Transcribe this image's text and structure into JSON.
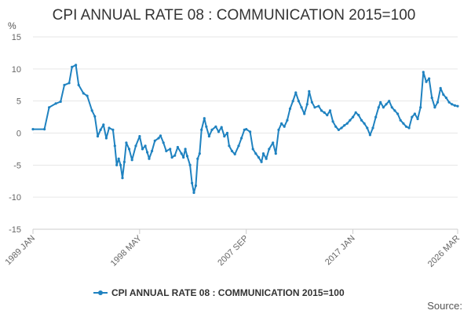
{
  "chart_data": {
    "type": "line",
    "title": "CPI ANNUAL RATE 08 : COMMUNICATION 2015=100",
    "unit": "%",
    "source_label": "Source:",
    "ylim": [
      -15,
      15
    ],
    "yticks": [
      15,
      10,
      5,
      0,
      -5,
      -10,
      -15
    ],
    "xlim": [
      "1989-01",
      "2026-03"
    ],
    "xticks": [
      {
        "label": "1989 JAN",
        "date": "1989-01"
      },
      {
        "label": "1998 MAY",
        "date": "1998-05"
      },
      {
        "label": "2007 SEP",
        "date": "2007-09"
      },
      {
        "label": "2017 JAN",
        "date": "2017-01"
      },
      {
        "label": "2026 MAR",
        "date": "2026-03"
      }
    ],
    "grid": true,
    "legend_position": "bottom",
    "colors": {
      "series": "#1f82c0",
      "grid": "#e6e6e6",
      "axis": "#cccccc"
    },
    "series": [
      {
        "name": "CPI ANNUAL RATE 08 : COMMUNICATION 2015=100",
        "points": [
          [
            "1989-01",
            0.6
          ],
          [
            "1990-01",
            0.6
          ],
          [
            "1990-06",
            4.0
          ],
          [
            "1991-01",
            4.6
          ],
          [
            "1991-06",
            4.9
          ],
          [
            "1991-10",
            7.5
          ],
          [
            "1992-03",
            7.8
          ],
          [
            "1992-06",
            10.3
          ],
          [
            "1992-10",
            10.6
          ],
          [
            "1993-01",
            7.5
          ],
          [
            "1993-06",
            6.2
          ],
          [
            "1993-10",
            5.8
          ],
          [
            "1994-03",
            3.5
          ],
          [
            "1994-06",
            2.6
          ],
          [
            "1994-09",
            -0.5
          ],
          [
            "1994-12",
            0.5
          ],
          [
            "1995-03",
            1.3
          ],
          [
            "1995-06",
            -0.8
          ],
          [
            "1995-09",
            0.8
          ],
          [
            "1996-01",
            0.5
          ],
          [
            "1996-03",
            -2.0
          ],
          [
            "1996-05",
            -5.0
          ],
          [
            "1996-07",
            -4.0
          ],
          [
            "1996-09",
            -5.0
          ],
          [
            "1996-11",
            -7.0
          ],
          [
            "1997-01",
            -4.5
          ],
          [
            "1997-03",
            -1.5
          ],
          [
            "1997-06",
            -2.5
          ],
          [
            "1997-09",
            -4.2
          ],
          [
            "1998-01",
            -2.0
          ],
          [
            "1998-05",
            -0.5
          ],
          [
            "1998-08",
            -2.5
          ],
          [
            "1998-11",
            -2.0
          ],
          [
            "1999-01",
            -3.0
          ],
          [
            "1999-03",
            -4.0
          ],
          [
            "1999-06",
            -2.8
          ],
          [
            "1999-09",
            -1.2
          ],
          [
            "2000-01",
            -0.8
          ],
          [
            "2000-03",
            -0.4
          ],
          [
            "2000-06",
            -1.5
          ],
          [
            "2000-09",
            -2.8
          ],
          [
            "2001-01",
            -2.5
          ],
          [
            "2001-03",
            -3.8
          ],
          [
            "2001-06",
            -3.5
          ],
          [
            "2001-09",
            -2.2
          ],
          [
            "2002-01",
            -3.2
          ],
          [
            "2002-03",
            -3.8
          ],
          [
            "2002-05",
            -2.5
          ],
          [
            "2002-07",
            -3.6
          ],
          [
            "2002-10",
            -5.0
          ],
          [
            "2002-12",
            -7.8
          ],
          [
            "2003-02",
            -9.3
          ],
          [
            "2003-04",
            -8.2
          ],
          [
            "2003-06",
            -4.0
          ],
          [
            "2003-08",
            -3.2
          ],
          [
            "2003-10",
            0.5
          ],
          [
            "2004-01",
            2.3
          ],
          [
            "2004-03",
            1.0
          ],
          [
            "2004-06",
            -0.5
          ],
          [
            "2004-09",
            0.5
          ],
          [
            "2005-01",
            1.0
          ],
          [
            "2005-04",
            0.2
          ],
          [
            "2005-07",
            0.9
          ],
          [
            "2005-10",
            -0.5
          ],
          [
            "2006-01",
            0.0
          ],
          [
            "2006-03",
            -2.0
          ],
          [
            "2006-06",
            -2.8
          ],
          [
            "2006-09",
            -3.3
          ],
          [
            "2007-01",
            -2.0
          ],
          [
            "2007-04",
            -0.8
          ],
          [
            "2007-07",
            0.5
          ],
          [
            "2007-09",
            0.6
          ],
          [
            "2008-01",
            0.2
          ],
          [
            "2008-04",
            -2.5
          ],
          [
            "2008-07",
            -3.2
          ],
          [
            "2008-10",
            -3.8
          ],
          [
            "2009-01",
            -4.5
          ],
          [
            "2009-03",
            -3.2
          ],
          [
            "2009-06",
            -4.0
          ],
          [
            "2009-09",
            -2.5
          ],
          [
            "2010-01",
            -1.5
          ],
          [
            "2010-04",
            -3.2
          ],
          [
            "2010-07",
            0.5
          ],
          [
            "2010-10",
            1.5
          ],
          [
            "2011-01",
            1.0
          ],
          [
            "2011-04",
            2.0
          ],
          [
            "2011-07",
            3.8
          ],
          [
            "2011-10",
            5.0
          ],
          [
            "2012-01",
            6.3
          ],
          [
            "2012-04",
            5.0
          ],
          [
            "2012-07",
            4.0
          ],
          [
            "2012-10",
            3.0
          ],
          [
            "2013-01",
            4.5
          ],
          [
            "2013-03",
            6.5
          ],
          [
            "2013-06",
            4.8
          ],
          [
            "2013-09",
            4.0
          ],
          [
            "2014-01",
            4.2
          ],
          [
            "2014-04",
            3.5
          ],
          [
            "2014-07",
            3.2
          ],
          [
            "2014-10",
            2.8
          ],
          [
            "2015-01",
            3.5
          ],
          [
            "2015-04",
            1.8
          ],
          [
            "2015-07",
            1.0
          ],
          [
            "2015-10",
            0.5
          ],
          [
            "2016-01",
            0.8
          ],
          [
            "2016-04",
            1.2
          ],
          [
            "2016-07",
            1.5
          ],
          [
            "2016-10",
            2.0
          ],
          [
            "2017-01",
            2.5
          ],
          [
            "2017-04",
            3.2
          ],
          [
            "2017-07",
            2.8
          ],
          [
            "2017-10",
            2.0
          ],
          [
            "2018-01",
            1.5
          ],
          [
            "2018-04",
            0.8
          ],
          [
            "2018-07",
            -0.3
          ],
          [
            "2018-10",
            0.8
          ],
          [
            "2019-01",
            2.5
          ],
          [
            "2019-04",
            4.0
          ],
          [
            "2019-06",
            4.8
          ],
          [
            "2019-09",
            4.0
          ],
          [
            "2019-12",
            4.5
          ],
          [
            "2020-03",
            5.0
          ],
          [
            "2020-06",
            4.0
          ],
          [
            "2020-09",
            3.5
          ],
          [
            "2020-12",
            3.0
          ],
          [
            "2021-03",
            2.0
          ],
          [
            "2021-06",
            1.5
          ],
          [
            "2021-09",
            1.0
          ],
          [
            "2021-12",
            0.8
          ],
          [
            "2022-03",
            2.5
          ],
          [
            "2022-06",
            3.0
          ],
          [
            "2022-09",
            2.2
          ],
          [
            "2022-12",
            4.0
          ],
          [
            "2023-03",
            9.5
          ],
          [
            "2023-06",
            8.0
          ],
          [
            "2023-09",
            8.5
          ],
          [
            "2023-12",
            5.5
          ],
          [
            "2024-03",
            4.0
          ],
          [
            "2024-06",
            4.8
          ],
          [
            "2024-09",
            7.0
          ],
          [
            "2024-12",
            6.0
          ],
          [
            "2025-03",
            5.5
          ],
          [
            "2025-06",
            4.8
          ],
          [
            "2025-09",
            4.5
          ],
          [
            "2025-12",
            4.3
          ],
          [
            "2026-03",
            4.2
          ]
        ]
      }
    ]
  }
}
